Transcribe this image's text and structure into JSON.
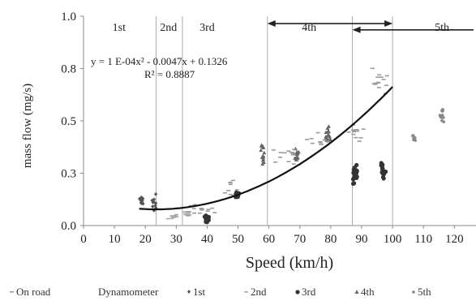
{
  "chart_data": {
    "type": "scatter",
    "xlabel": "Speed (km/h)",
    "ylabel": "mass flow (mg/s)",
    "xlim": [
      0,
      127
    ],
    "ylim": [
      0,
      1.0
    ],
    "x_ticks": [
      "0",
      "10",
      "20",
      "30",
      "40",
      "50",
      "60",
      "70",
      "80",
      "90",
      "100",
      "110",
      "120"
    ],
    "y_ticks": [
      "0.0",
      "0.3",
      "0.5",
      "0.8",
      "1.0"
    ],
    "gear_bounds": [
      23.5,
      32,
      59.5,
      87,
      100
    ],
    "gear_labels": [
      {
        "text": "1st",
        "x": 11.5
      },
      {
        "text": "2nd",
        "x": 27.5
      },
      {
        "text": "3rd",
        "x": 40
      },
      {
        "text": "4th",
        "x": 73
      },
      {
        "text": "5th",
        "x": 116
      }
    ],
    "arrows": [
      {
        "name": "4th",
        "from": 59.5,
        "to": 100,
        "y": 0.965
      },
      {
        "name": "5th",
        "from": 87,
        "to": 127,
        "y": 0.935
      }
    ],
    "fit": {
      "equation": "y = 1 E-04x² - 0.0047x + 0.1326",
      "r2": "R² = 0.8887",
      "a": 0.0001,
      "b": -0.0047,
      "c": 0.1326,
      "x_range": [
        18,
        100
      ]
    },
    "clusters": [
      {
        "series": "1st",
        "x": 19,
        "y": 0.12,
        "n": 12,
        "sx": 1.0,
        "sy": 0.03
      },
      {
        "series": "1st",
        "x": 23,
        "y": 0.11,
        "n": 10,
        "sx": 1.0,
        "sy": 0.03
      },
      {
        "series": "2nd",
        "x": 29,
        "y": 0.04,
        "n": 10,
        "sx": 1.5,
        "sy": 0.012
      },
      {
        "series": "2nd",
        "x": 34,
        "y": 0.06,
        "n": 10,
        "sx": 1.5,
        "sy": 0.015
      },
      {
        "series": "3rd",
        "x": 40,
        "y": 0.03,
        "n": 16,
        "sx": 0.8,
        "sy": 0.015
      },
      {
        "series": "3rd",
        "x": 50,
        "y": 0.15,
        "n": 12,
        "sx": 0.8,
        "sy": 0.015
      },
      {
        "series": "On road",
        "x": 38,
        "y": 0.08,
        "n": 14,
        "sx": 4.0,
        "sy": 0.03
      },
      {
        "series": "On road",
        "x": 48,
        "y": 0.18,
        "n": 10,
        "sx": 2.5,
        "sy": 0.04
      },
      {
        "series": "4th",
        "x": 58,
        "y": 0.34,
        "n": 16,
        "sx": 1.0,
        "sy": 0.04
      },
      {
        "series": "4th",
        "x": 69,
        "y": 0.34,
        "n": 14,
        "sx": 1.0,
        "sy": 0.035
      },
      {
        "series": "4th",
        "x": 79,
        "y": 0.43,
        "n": 14,
        "sx": 1.0,
        "sy": 0.035
      },
      {
        "series": "On road",
        "x": 66,
        "y": 0.33,
        "n": 12,
        "sx": 4.0,
        "sy": 0.04
      },
      {
        "series": "On road",
        "x": 76,
        "y": 0.4,
        "n": 10,
        "sx": 4.0,
        "sy": 0.04
      },
      {
        "series": "3rd",
        "x": 88,
        "y": 0.24,
        "n": 20,
        "sx": 0.7,
        "sy": 0.04
      },
      {
        "series": "3rd",
        "x": 97,
        "y": 0.27,
        "n": 18,
        "sx": 0.7,
        "sy": 0.04
      },
      {
        "series": "On road",
        "x": 88,
        "y": 0.46,
        "n": 12,
        "sx": 2.5,
        "sy": 0.05
      },
      {
        "series": "On road",
        "x": 96,
        "y": 0.7,
        "n": 14,
        "sx": 2.5,
        "sy": 0.09
      },
      {
        "series": "5th",
        "x": 107,
        "y": 0.42,
        "n": 10,
        "sx": 0.5,
        "sy": 0.015
      },
      {
        "series": "5th",
        "x": 116,
        "y": 0.53,
        "n": 12,
        "sx": 0.7,
        "sy": 0.035
      }
    ],
    "series": [
      {
        "name": "On road",
        "color": "#9a9a9a",
        "marker": "dash"
      },
      {
        "name": "Dynamometer",
        "color": "#444444",
        "marker": "none"
      },
      {
        "name": "1st",
        "color": "#555555",
        "marker": "diamond"
      },
      {
        "name": "2nd",
        "color": "#aaaaaa",
        "marker": "dash"
      },
      {
        "name": "3rd",
        "color": "#333333",
        "marker": "circle"
      },
      {
        "name": "4th",
        "color": "#666666",
        "marker": "triangle"
      },
      {
        "name": "5th",
        "color": "#888888",
        "marker": "star"
      }
    ]
  }
}
